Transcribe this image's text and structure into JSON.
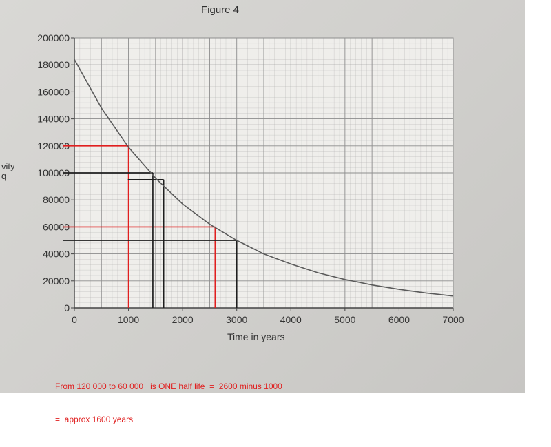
{
  "figure_title": "Figure 4",
  "y_label_fragment": [
    "vity",
    "q"
  ],
  "annotation_lines": [
    "From 120 000 to 60 000   is ONE half life  =  2600 minus 1000",
    "=  approx 1600 years"
  ],
  "colors": {
    "curve": "#5a5a5a",
    "red_markers": "#e01f1f",
    "black_markers": "#1e1e1e",
    "grid": "#a9a9a9",
    "annotation": "#e01f1f"
  },
  "chart_data": {
    "type": "line",
    "title": "Figure 4",
    "xlabel": "Time in years",
    "ylabel": "",
    "xlim": [
      0,
      7000
    ],
    "ylim": [
      0,
      200000
    ],
    "x_ticks": [
      0,
      1000,
      2000,
      3000,
      4000,
      5000,
      6000,
      7000
    ],
    "x_tick_labels": [
      "0",
      "1000",
      "2000",
      "3000",
      "4000",
      "5000",
      "6000",
      "7000"
    ],
    "y_ticks": [
      0,
      20000,
      40000,
      60000,
      80000,
      100000,
      120000,
      140000,
      160000,
      180000,
      200000
    ],
    "y_tick_labels": [
      "0",
      "20000",
      "40000",
      "60000",
      "80000",
      "100000",
      "120000",
      "140000",
      "160000",
      "180000",
      "200000"
    ],
    "grid": true,
    "series": [
      {
        "x": [
          0,
          500,
          1000,
          1500,
          2000,
          2500,
          3000,
          3500,
          4000,
          4500,
          5000,
          5500,
          6000,
          6500,
          7000
        ],
        "y": [
          184000,
          148000,
          119000,
          96000,
          77000,
          62000,
          50000,
          40000,
          32500,
          26000,
          21000,
          17000,
          13700,
          11000,
          8800
        ]
      }
    ],
    "red_markers": [
      {
        "y": 120000,
        "x": 1000
      },
      {
        "y": 60000,
        "x": 2600
      }
    ],
    "black_markers": [
      {
        "y": 100000,
        "x": 1450
      },
      {
        "y": 95000,
        "x": 1650
      },
      {
        "y": 50000,
        "x": 3000
      }
    ]
  }
}
